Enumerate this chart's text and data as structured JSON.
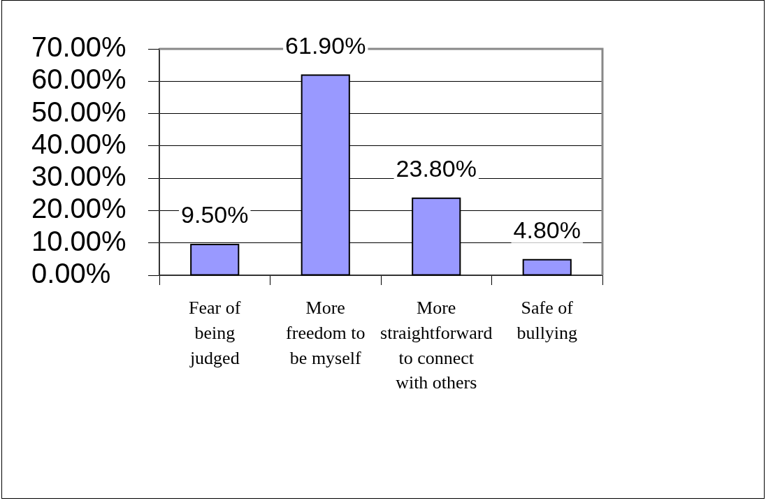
{
  "chart_data": {
    "type": "bar",
    "categories": [
      "Fear of being judged",
      "More freedom to be myself",
      "More straightforward to connect with others",
      "Safe of bullying"
    ],
    "values": [
      9.5,
      61.9,
      23.8,
      4.8
    ],
    "value_labels": [
      "9.50%",
      "61.90%",
      "23.80%",
      "4.80%"
    ],
    "color": "#9999ff",
    "ylim": [
      0,
      70
    ],
    "yticks": [
      {
        "value": 0,
        "label": "0.00%"
      },
      {
        "value": 10,
        "label": "10.00%"
      },
      {
        "value": 20,
        "label": "20.00%"
      },
      {
        "value": 30,
        "label": "30.00%"
      },
      {
        "value": 40,
        "label": "40.00%"
      },
      {
        "value": 50,
        "label": "50.00%"
      },
      {
        "value": 60,
        "label": "60.00%"
      },
      {
        "value": 70,
        "label": "70.00%"
      }
    ],
    "grid": "y"
  }
}
